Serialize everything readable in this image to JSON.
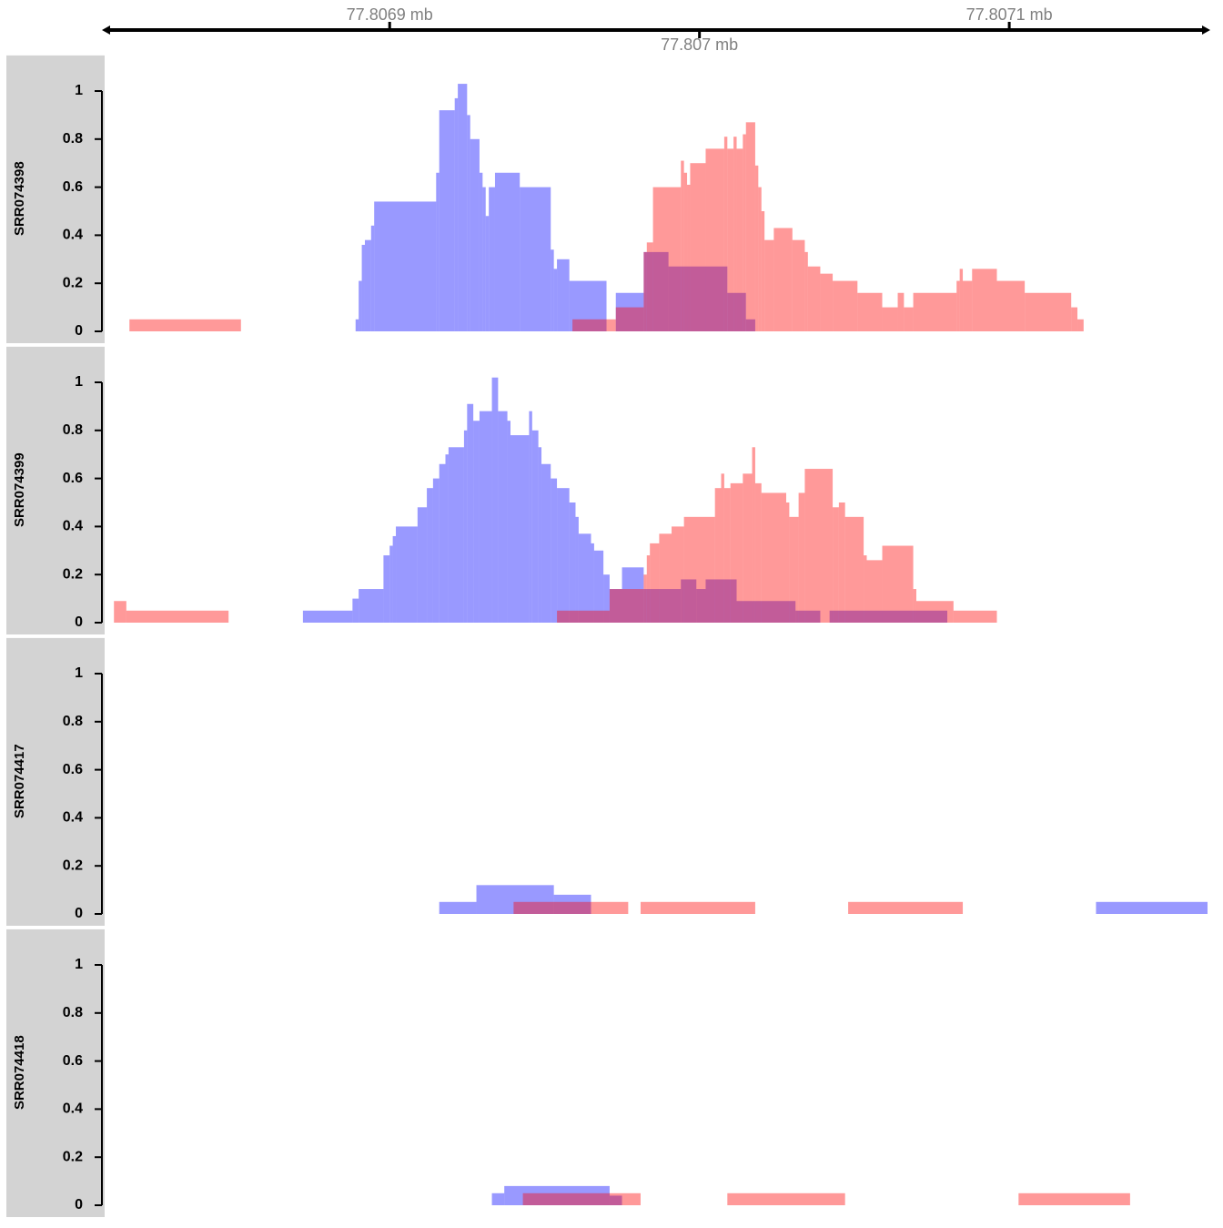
{
  "chart_data": {
    "type": "histogram",
    "xlim": [
      77806808,
      77807164
    ],
    "xticks": [
      {
        "value": 77806900,
        "label": "77.8069 mb"
      },
      {
        "value": 77807000,
        "label": "77.807 mb"
      },
      {
        "value": 77807100,
        "label": "77.8071 mb"
      }
    ],
    "ylim": [
      0,
      1.15
    ],
    "yticks": [
      0,
      0.2,
      0.4,
      0.6,
      0.8,
      1
    ],
    "tracks": [
      {
        "label": "SRR074398",
        "series": [
          {
            "color": "#0000ff",
            "bins": [
              77806889,
              77806890,
              77806891,
              77806892,
              77806894,
              77806895,
              77806915,
              77806916,
              77806921,
              77806922,
              77806925,
              77806926,
              77806929,
              77806930,
              77806931,
              77806932,
              77806934,
              77806942,
              77806952,
              77806953,
              77806954,
              77806958,
              77806970,
              77806973,
              77806982,
              77806990,
              77807009,
              77807015,
              77807018
            ],
            "values": [
              0.05,
              0.21,
              0.36,
              0.38,
              0.44,
              0.54,
              0.66,
              0.92,
              0.97,
              1.03,
              0.9,
              0.8,
              0.66,
              0.6,
              0.48,
              0.6,
              0.66,
              0.6,
              0.34,
              0.26,
              0.3,
              0.21,
              0,
              0.16,
              0.33,
              0.27,
              0.16,
              0.05
            ]
          },
          {
            "color": "#ff0000",
            "bins": [
              77806816,
              77806852,
              77806959,
              77806973,
              77806982,
              77806983,
              77806985,
              77806994,
              77806995,
              77806996,
              77806997,
              77807002,
              77807008,
              77807009,
              77807011,
              77807012,
              77807014,
              77807015,
              77807018,
              77807019,
              77807020,
              77807021,
              77807024,
              77807030,
              77807034,
              77807035,
              77807039,
              77807043,
              77807051,
              77807059,
              77807064,
              77807066,
              77807069,
              77807083,
              77807084,
              77807085,
              77807088,
              77807096,
              77807105,
              77807120,
              77807122,
              77807124
            ],
            "values": [
              0.05,
              0,
              0.05,
              0.1,
              0.33,
              0.37,
              0.6,
              0.71,
              0.66,
              0.61,
              0.7,
              0.76,
              0.81,
              0.76,
              0.81,
              0.76,
              0.82,
              0.87,
              0.69,
              0.6,
              0.5,
              0.38,
              0.43,
              0.38,
              0.33,
              0.27,
              0.24,
              0.21,
              0.16,
              0.1,
              0.16,
              0.1,
              0.16,
              0.21,
              0.26,
              0.21,
              0.26,
              0.21,
              0.16,
              0.1,
              0.05
            ]
          }
        ]
      },
      {
        "label": "SRR074399",
        "series": [
          {
            "color": "#0000ff",
            "bins": [
              77806872,
              77806888,
              77806890,
              77806898,
              77806900,
              77806901,
              77806902,
              77806909,
              77806912,
              77806914,
              77806916,
              77806918,
              77806919,
              77806924,
              77806925,
              77806927,
              77806929,
              77806933,
              77806935,
              77806938,
              77806939,
              77806945,
              77806946,
              77806948,
              77806949,
              77806952,
              77806954,
              77806958,
              77806960,
              77806961,
              77806965,
              77806966,
              77806969,
              77806971,
              77806975,
              77806982,
              77806994,
              77806999,
              77807002,
              77807012,
              77807031,
              77807039,
              77807042,
              77807080
            ],
            "values": [
              0.05,
              0.1,
              0.14,
              0.28,
              0.32,
              0.36,
              0.4,
              0.48,
              0.56,
              0.6,
              0.66,
              0.7,
              0.73,
              0.8,
              0.91,
              0.84,
              0.88,
              1.02,
              0.88,
              0.84,
              0.78,
              0.88,
              0.8,
              0.73,
              0.66,
              0.6,
              0.56,
              0.5,
              0.44,
              0.37,
              0.33,
              0.3,
              0.2,
              0.14,
              0.23,
              0.14,
              0.18,
              0.14,
              0.18,
              0.09,
              0.05,
              0,
              0.05
            ]
          },
          {
            "color": "#ff0000",
            "bins": [
              77806811,
              77806815,
              77806848,
              77806954,
              77806971,
              77806982,
              77806983,
              77806984,
              77806987,
              77806991,
              77806995,
              77807005,
              77807007,
              77807008,
              77807010,
              77807014,
              77807017,
              77807018,
              77807020,
              77807028,
              77807029,
              77807032,
              77807034,
              77807043,
              77807045,
              77807047,
              77807053,
              77807054,
              77807059,
              77807069,
              77807070,
              77807082,
              77807096
            ],
            "values": [
              0.09,
              0.05,
              0,
              0.05,
              0.14,
              0.2,
              0.28,
              0.33,
              0.37,
              0.4,
              0.44,
              0.56,
              0.62,
              0.56,
              0.58,
              0.62,
              0.73,
              0.58,
              0.54,
              0.5,
              0.44,
              0.54,
              0.64,
              0.48,
              0.5,
              0.44,
              0.28,
              0.26,
              0.32,
              0.14,
              0.09,
              0.05
            ]
          }
        ]
      },
      {
        "label": "SRR074417",
        "series": [
          {
            "color": "#0000ff",
            "bins": [
              77806916,
              77806928,
              77806953,
              77806965,
              77807128,
              77807164
            ],
            "values": [
              0.05,
              0.12,
              0.08,
              0,
              0.05
            ]
          },
          {
            "color": "#ff0000",
            "bins": [
              77806940,
              77806977,
              77806981,
              77807018,
              77807048,
              77807085
            ],
            "values": [
              0.05,
              0,
              0.05,
              0,
              0.05
            ]
          }
        ]
      },
      {
        "label": "SRR074418",
        "series": [
          {
            "color": "#0000ff",
            "bins": [
              77806933,
              77806937,
              77806971,
              77806975
            ],
            "values": [
              0.05,
              0.08,
              0.04
            ]
          },
          {
            "color": "#ff0000",
            "bins": [
              77806943,
              77806981,
              77807009,
              77807047,
              77807103,
              77807139
            ],
            "values": [
              0.05,
              0,
              0.05,
              0,
              0.05
            ]
          }
        ]
      }
    ]
  }
}
